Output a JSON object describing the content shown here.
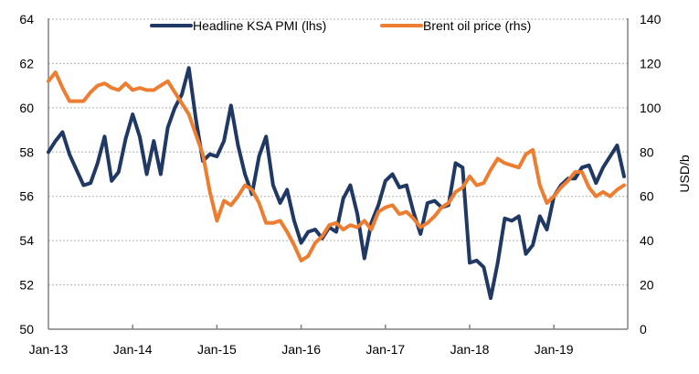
{
  "chart_data": {
    "type": "line",
    "title": "",
    "xlabel": "",
    "ylabel_left": "",
    "ylabel_right": "USD/b",
    "x_start": "Jan-13",
    "x_frequency": "monthly",
    "x_tick_labels": [
      "Jan-13",
      "Jan-14",
      "Jan-15",
      "Jan-16",
      "Jan-17",
      "Jan-18",
      "Jan-19"
    ],
    "ylim_left": [
      50,
      64
    ],
    "yticks_left": [
      "50",
      "52",
      "54",
      "56",
      "58",
      "60",
      "62",
      "64"
    ],
    "ylim_right": [
      0,
      140
    ],
    "yticks_right": [
      "0",
      "20",
      "40",
      "60",
      "80",
      "100",
      "120",
      "140"
    ],
    "grid": "horizontal dotted",
    "legend_position": "top",
    "series": [
      {
        "name": "Headline KSA PMI (lhs)",
        "axis": "left",
        "color": "#1f3864",
        "values": [
          58.0,
          58.5,
          58.9,
          57.9,
          57.2,
          56.5,
          56.6,
          57.5,
          58.7,
          56.7,
          57.1,
          58.6,
          59.7,
          58.7,
          57.0,
          58.5,
          57.0,
          59.1,
          60.0,
          60.6,
          61.8,
          59.5,
          57.6,
          57.9,
          57.8,
          58.5,
          60.1,
          58.3,
          57.0,
          56.1,
          57.8,
          58.7,
          56.5,
          55.7,
          56.3,
          54.9,
          53.9,
          54.4,
          54.5,
          54.1,
          54.6,
          54.4,
          55.9,
          56.5,
          55.2,
          53.2,
          54.8,
          55.6,
          56.7,
          57.0,
          56.4,
          56.5,
          55.3,
          54.3,
          55.7,
          55.8,
          55.5,
          55.6,
          57.5,
          57.3,
          53.0,
          53.1,
          52.8,
          51.4,
          53.0,
          55.0,
          54.9,
          55.1,
          53.4,
          53.8,
          55.1,
          54.5,
          56.0,
          56.5,
          56.8,
          56.8,
          57.3,
          57.4,
          56.6,
          57.3,
          57.8,
          58.3,
          56.9
        ]
      },
      {
        "name": "Brent oil price (rhs)",
        "axis": "right",
        "color": "#ed7d31",
        "values": [
          112,
          116,
          109,
          103,
          103,
          103,
          107,
          110,
          111,
          109,
          108,
          111,
          108,
          109,
          108,
          108,
          110,
          112,
          107,
          102,
          97,
          88,
          79,
          62,
          49,
          58,
          56,
          60,
          65,
          63,
          57,
          48,
          48,
          49,
          44,
          38,
          31,
          33,
          39,
          42,
          47,
          48,
          45,
          47,
          46,
          49,
          45,
          53,
          55,
          56,
          52,
          53,
          50,
          46,
          48,
          51,
          55,
          57,
          62,
          64,
          69,
          65,
          66,
          72,
          77,
          75,
          74,
          73,
          79,
          81,
          65,
          57,
          60,
          64,
          67,
          71,
          71,
          64,
          60,
          62,
          60,
          63,
          65
        ]
      }
    ]
  },
  "colors": {
    "axis": "#808080",
    "grid": "#bfbfbf"
  }
}
